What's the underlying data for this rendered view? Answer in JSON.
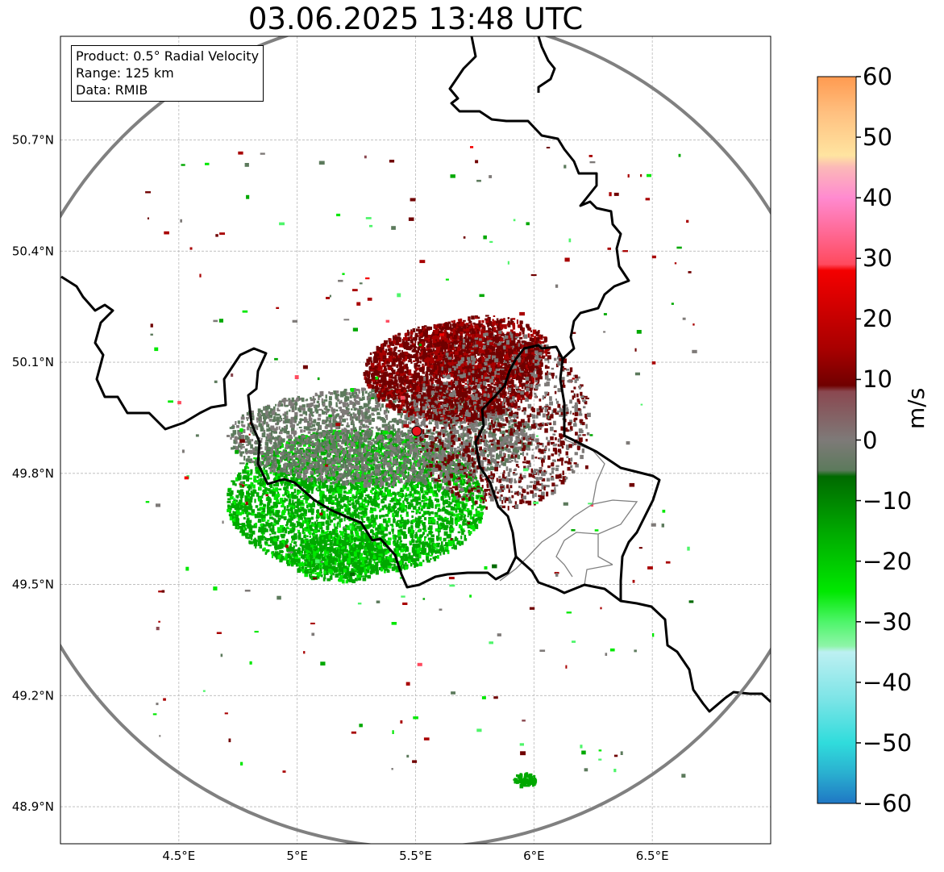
{
  "title": "03.06.2025 13:48 UTC",
  "info": {
    "product": "Product: 0.5° Radial Velocity",
    "range": "Range: 125 km",
    "data_source": "Data: RMIB"
  },
  "map": {
    "lon_range": [
      4.0,
      7.0
    ],
    "lat_range": [
      48.8,
      50.98
    ],
    "lon_ticks": [
      {
        "value": 4.5,
        "label": "4.5°E"
      },
      {
        "value": 5.0,
        "label": "5°E"
      },
      {
        "value": 5.5,
        "label": "5.5°E"
      },
      {
        "value": 6.0,
        "label": "6°E"
      },
      {
        "value": 6.5,
        "label": "6.5°E"
      }
    ],
    "lat_ticks": [
      {
        "value": 50.7,
        "label": "50.7°N"
      },
      {
        "value": 50.4,
        "label": "50.4°N"
      },
      {
        "value": 50.1,
        "label": "50.1°N"
      },
      {
        "value": 49.8,
        "label": "49.8°N"
      },
      {
        "value": 49.5,
        "label": "49.5°N"
      },
      {
        "value": 49.2,
        "label": "49.2°N"
      },
      {
        "value": 48.9,
        "label": "48.9°N"
      }
    ],
    "radar_site": {
      "lon": 5.505,
      "lat": 49.914,
      "color": "#e8141c"
    },
    "range_ring_km": 125,
    "ring_color": "#808080",
    "border_color": "#000000",
    "province_color": "#808080"
  },
  "colorbar": {
    "label": "m/s",
    "min": -60,
    "max": 60,
    "tick_labels": [
      "60",
      "50",
      "40",
      "30",
      "20",
      "10",
      "0",
      "−10",
      "−20",
      "−30",
      "−40",
      "−50",
      "−60"
    ],
    "tick_values": [
      60,
      50,
      40,
      30,
      20,
      10,
      0,
      -10,
      -20,
      -30,
      -40,
      -50,
      -60
    ],
    "stops": [
      {
        "v": -60,
        "c": "#1f77c4"
      },
      {
        "v": -55,
        "c": "#2ab0d0"
      },
      {
        "v": -50,
        "c": "#30dcdc"
      },
      {
        "v": -43,
        "c": "#7ae4e6"
      },
      {
        "v": -35,
        "c": "#bdf0f2"
      },
      {
        "v": -34,
        "c": "#8ef5a8"
      },
      {
        "v": -30,
        "c": "#4ef56a"
      },
      {
        "v": -25,
        "c": "#00e800"
      },
      {
        "v": -15,
        "c": "#00a800"
      },
      {
        "v": -6,
        "c": "#006a00"
      },
      {
        "v": -5,
        "c": "#5c7a5c"
      },
      {
        "v": 0,
        "c": "#7e7a78"
      },
      {
        "v": 8,
        "c": "#8a4850"
      },
      {
        "v": 9,
        "c": "#700000"
      },
      {
        "v": 15,
        "c": "#a80000"
      },
      {
        "v": 28,
        "c": "#f40000"
      },
      {
        "v": 29,
        "c": "#ff4a5e"
      },
      {
        "v": 40,
        "c": "#ff8ad0"
      },
      {
        "v": 45,
        "c": "#fcb8b8"
      },
      {
        "v": 47,
        "c": "#ffe4a0"
      },
      {
        "v": 54,
        "c": "#ffc080"
      },
      {
        "v": 60,
        "c": "#ff9a50"
      }
    ]
  }
}
